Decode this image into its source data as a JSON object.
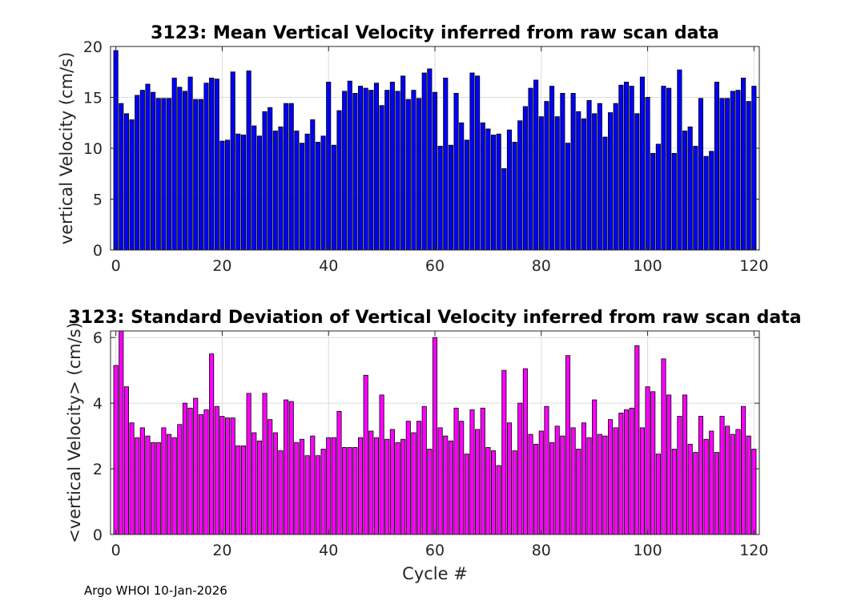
{
  "chart_data": [
    {
      "type": "bar",
      "title": "3123: Mean Vertical Velocity inferred from raw scan data",
      "xlabel": "",
      "ylabel": "vertical Velocity (cm/s)",
      "xlim": [
        -1,
        121
      ],
      "ylim": [
        0,
        20
      ],
      "xticks": [
        0,
        20,
        40,
        60,
        80,
        100,
        120
      ],
      "yticks": [
        0,
        5,
        10,
        15,
        20
      ],
      "grid": true,
      "color": "#0000ff",
      "x_start": 0,
      "values": [
        19.6,
        14.4,
        13.4,
        12.8,
        15.2,
        15.7,
        16.3,
        15.5,
        14.9,
        14.9,
        14.9,
        16.9,
        16.0,
        15.6,
        17.0,
        14.8,
        14.8,
        16.4,
        16.9,
        16.8,
        10.7,
        10.8,
        17.5,
        11.4,
        11.3,
        17.6,
        12.2,
        11.2,
        13.6,
        14.0,
        11.7,
        12.1,
        14.4,
        14.4,
        11.7,
        10.5,
        11.4,
        12.8,
        10.6,
        11.2,
        16.5,
        10.3,
        13.7,
        15.6,
        16.6,
        15.4,
        16.1,
        15.9,
        15.7,
        16.4,
        14.2,
        15.7,
        16.5,
        15.6,
        17.1,
        14.8,
        15.7,
        14.9,
        17.4,
        17.8,
        15.5,
        10.2,
        16.9,
        10.3,
        15.4,
        12.5,
        10.8,
        17.4,
        17.1,
        12.5,
        11.9,
        11.3,
        11.4,
        8.0,
        11.8,
        10.6,
        12.7,
        14.1,
        15.9,
        16.7,
        13.1,
        14.6,
        16.1,
        13.1,
        15.4,
        10.5,
        15.4,
        13.6,
        12.9,
        14.7,
        13.4,
        14.4,
        11.1,
        13.5,
        14.4,
        16.2,
        16.5,
        16.1,
        13.4,
        17.0,
        15.0,
        9.5,
        10.4,
        16.1,
        15.9,
        9.5,
        17.7,
        11.7,
        12.1,
        10.2,
        14.9,
        9.2,
        9.7,
        16.5,
        14.9,
        14.9,
        15.6,
        15.7,
        16.9,
        14.6,
        16.1
      ]
    },
    {
      "type": "bar",
      "title": "3123: Standard Deviation of Vertical Velocity inferred from raw scan data",
      "xlabel": "Cycle #",
      "ylabel": "<vertical Velocity> (cm/s)",
      "xlim": [
        -1,
        121
      ],
      "ylim": [
        0,
        6.2
      ],
      "xticks": [
        0,
        20,
        40,
        60,
        80,
        100,
        120
      ],
      "yticks": [
        0,
        2,
        4,
        6
      ],
      "grid": true,
      "color": "#ff00ff",
      "x_start": 0,
      "values": [
        5.15,
        6.5,
        4.5,
        3.4,
        2.95,
        3.25,
        3.0,
        2.8,
        2.8,
        3.25,
        3.05,
        2.95,
        3.35,
        4.0,
        3.85,
        4.15,
        3.65,
        3.8,
        5.5,
        3.9,
        3.6,
        3.55,
        3.55,
        2.7,
        2.7,
        4.3,
        3.1,
        2.85,
        4.3,
        3.5,
        3.1,
        2.55,
        4.1,
        4.05,
        2.8,
        2.9,
        2.4,
        3.0,
        2.4,
        2.6,
        2.95,
        2.95,
        3.75,
        2.65,
        2.65,
        2.65,
        2.95,
        4.85,
        3.15,
        2.95,
        4.25,
        2.9,
        3.2,
        2.8,
        2.9,
        3.45,
        3.1,
        3.45,
        3.9,
        2.6,
        6.0,
        3.25,
        3.0,
        2.85,
        3.85,
        3.45,
        2.45,
        3.8,
        3.2,
        3.85,
        2.65,
        2.55,
        2.1,
        5.0,
        3.4,
        2.55,
        4.0,
        5.05,
        3.05,
        2.75,
        3.15,
        3.9,
        2.8,
        3.3,
        3.0,
        5.45,
        3.25,
        2.6,
        3.4,
        2.95,
        4.1,
        3.05,
        3.0,
        3.5,
        3.25,
        3.7,
        3.8,
        3.85,
        5.75,
        3.25,
        4.5,
        4.35,
        2.45,
        5.35,
        4.25,
        2.6,
        3.6,
        4.25,
        2.75,
        2.5,
        3.6,
        2.9,
        3.15,
        2.5,
        3.6,
        3.3,
        3.05,
        3.2,
        3.9,
        3.0,
        2.6
      ]
    }
  ],
  "footer": {
    "text": "Argo WHOI 10-Jan-2026"
  }
}
